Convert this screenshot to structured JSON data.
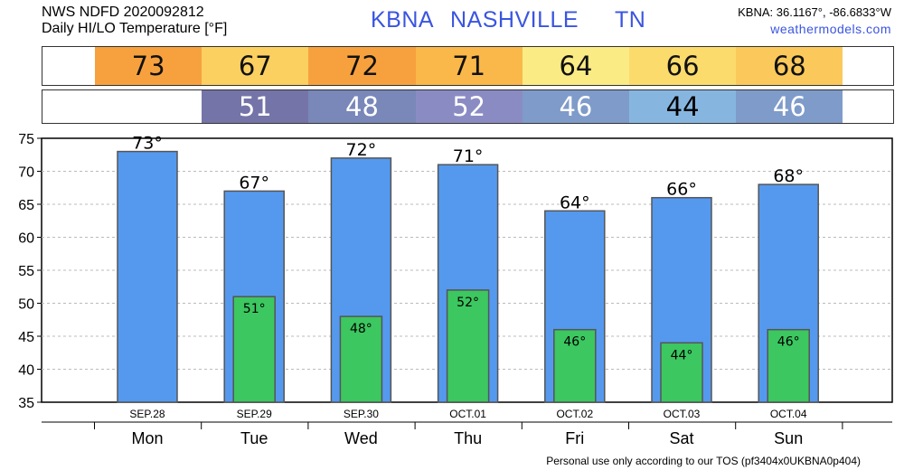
{
  "header": {
    "line1": "NWS NDFD 2020092812",
    "line2": "Daily HI/LO Temperature [°F]",
    "station_id": "KBNA",
    "city": "NASHVILLE",
    "state": "TN",
    "coords": "KBNA: 36.1167°, -86.6833°W",
    "website": "weathermodels.com"
  },
  "hi_strip": [
    {
      "value": "73",
      "color": "#f7a13e"
    },
    {
      "value": "67",
      "color": "#fbd060"
    },
    {
      "value": "72",
      "color": "#f7a13e"
    },
    {
      "value": "71",
      "color": "#f9b849"
    },
    {
      "value": "64",
      "color": "#fbeb84"
    },
    {
      "value": "66",
      "color": "#fbdb6c"
    },
    {
      "value": "68",
      "color": "#fbc95b"
    }
  ],
  "lo_strip": [
    {
      "value": "51",
      "color": "#7574a8",
      "text_color": "#ffffff"
    },
    {
      "value": "48",
      "color": "#7987b9",
      "text_color": "#ffffff"
    },
    {
      "value": "52",
      "color": "#8b8bc4",
      "text_color": "#ffffff"
    },
    {
      "value": "46",
      "color": "#7f9bca",
      "text_color": "#ffffff"
    },
    {
      "value": "44",
      "color": "#86b6e0",
      "text_color": "#000000"
    },
    {
      "value": "46",
      "color": "#7f9bca",
      "text_color": "#ffffff"
    }
  ],
  "chart_data": {
    "type": "bar",
    "categories": [
      "SEP.28",
      "SEP.29",
      "SEP.30",
      "OCT.01",
      "OCT.02",
      "OCT.03",
      "OCT.04"
    ],
    "days": [
      "Mon",
      "Tue",
      "Wed",
      "Thu",
      "Fri",
      "Sat",
      "Sun"
    ],
    "series": [
      {
        "values": [
          73,
          67,
          72,
          71,
          64,
          66,
          68
        ],
        "color": "#5599ef"
      },
      {
        "values": [
          null,
          51,
          48,
          52,
          46,
          44,
          46
        ],
        "color": "#3cc760"
      }
    ],
    "hi_labels": [
      "73°",
      "67°",
      "72°",
      "71°",
      "64°",
      "66°",
      "68°"
    ],
    "lo_labels": [
      "",
      "51°",
      "48°",
      "52°",
      "46°",
      "44°",
      "46°"
    ],
    "yticks": [
      "35",
      "40",
      "45",
      "50",
      "55",
      "60",
      "65",
      "70",
      "75"
    ],
    "ylim": [
      35,
      75
    ],
    "grid": true
  },
  "footer": "Personal use only according to our TOS (pf3404x0UKBNA0p404)"
}
